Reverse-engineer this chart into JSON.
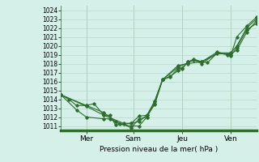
{
  "title": "Pression niveau de la mer( hPa )",
  "bg_color": "#d4f0e8",
  "grid_color": "#b8d8c8",
  "line_color": "#2d6e2d",
  "ylim": [
    1010.5,
    1024.5
  ],
  "yticks": [
    1011,
    1012,
    1013,
    1014,
    1015,
    1016,
    1017,
    1018,
    1019,
    1020,
    1021,
    1022,
    1023,
    1024
  ],
  "day_positions": [
    0.13,
    0.37,
    0.62,
    0.87
  ],
  "day_labels": [
    "Mer",
    "Sam",
    "Jeu",
    "Ven"
  ],
  "lines": [
    [
      0.0,
      1014.5,
      0.04,
      1014.0,
      0.08,
      1013.3,
      0.13,
      1013.3,
      0.17,
      1013.5,
      0.22,
      1012.2,
      0.25,
      1012.2,
      0.28,
      1011.1,
      0.32,
      1011.2,
      0.36,
      1011.3,
      0.4,
      1012.1,
      0.44,
      1012.2,
      0.48,
      1013.4,
      0.52,
      1016.2,
      0.56,
      1016.5,
      0.6,
      1017.5,
      0.62,
      1017.5,
      0.65,
      1018.2,
      0.68,
      1018.5,
      0.72,
      1018.2,
      0.75,
      1018.1,
      0.8,
      1019.2,
      0.85,
      1019.0,
      0.87,
      1019.0,
      0.9,
      1021.0,
      0.95,
      1022.2,
      1.0,
      1023.2
    ],
    [
      0.0,
      1014.5,
      0.08,
      1012.8,
      0.13,
      1012.0,
      0.22,
      1011.8,
      0.25,
      1011.8,
      0.3,
      1011.2,
      0.36,
      1011.0,
      0.4,
      1011.0,
      0.44,
      1012.0,
      0.48,
      1013.8,
      0.52,
      1016.2,
      0.56,
      1016.6,
      0.6,
      1017.2,
      0.62,
      1017.4,
      0.65,
      1018.2,
      0.68,
      1018.4,
      0.72,
      1018.2,
      0.8,
      1019.3,
      0.87,
      1018.9,
      0.9,
      1019.8,
      0.95,
      1021.8,
      1.0,
      1022.5
    ],
    [
      0.0,
      1014.5,
      0.13,
      1013.3,
      0.22,
      1012.5,
      0.28,
      1011.5,
      0.36,
      1010.8,
      0.4,
      1011.8,
      0.44,
      1012.0,
      0.48,
      1013.5,
      0.52,
      1016.2,
      0.6,
      1017.6,
      0.65,
      1018.1,
      0.68,
      1018.4,
      0.72,
      1018.0,
      0.8,
      1019.2,
      0.87,
      1019.2,
      0.9,
      1020.0,
      0.95,
      1022.0,
      1.0,
      1023.0
    ],
    [
      0.0,
      1014.5,
      0.13,
      1013.2,
      0.22,
      1012.2,
      0.32,
      1011.3,
      0.36,
      1011.3,
      0.4,
      1011.5,
      0.44,
      1012.2,
      0.48,
      1013.8,
      0.52,
      1016.2,
      0.6,
      1017.8,
      0.65,
      1018.0,
      0.72,
      1018.2,
      0.8,
      1019.1,
      0.87,
      1019.1,
      0.9,
      1019.5,
      0.95,
      1021.5,
      1.0,
      1022.8
    ]
  ]
}
